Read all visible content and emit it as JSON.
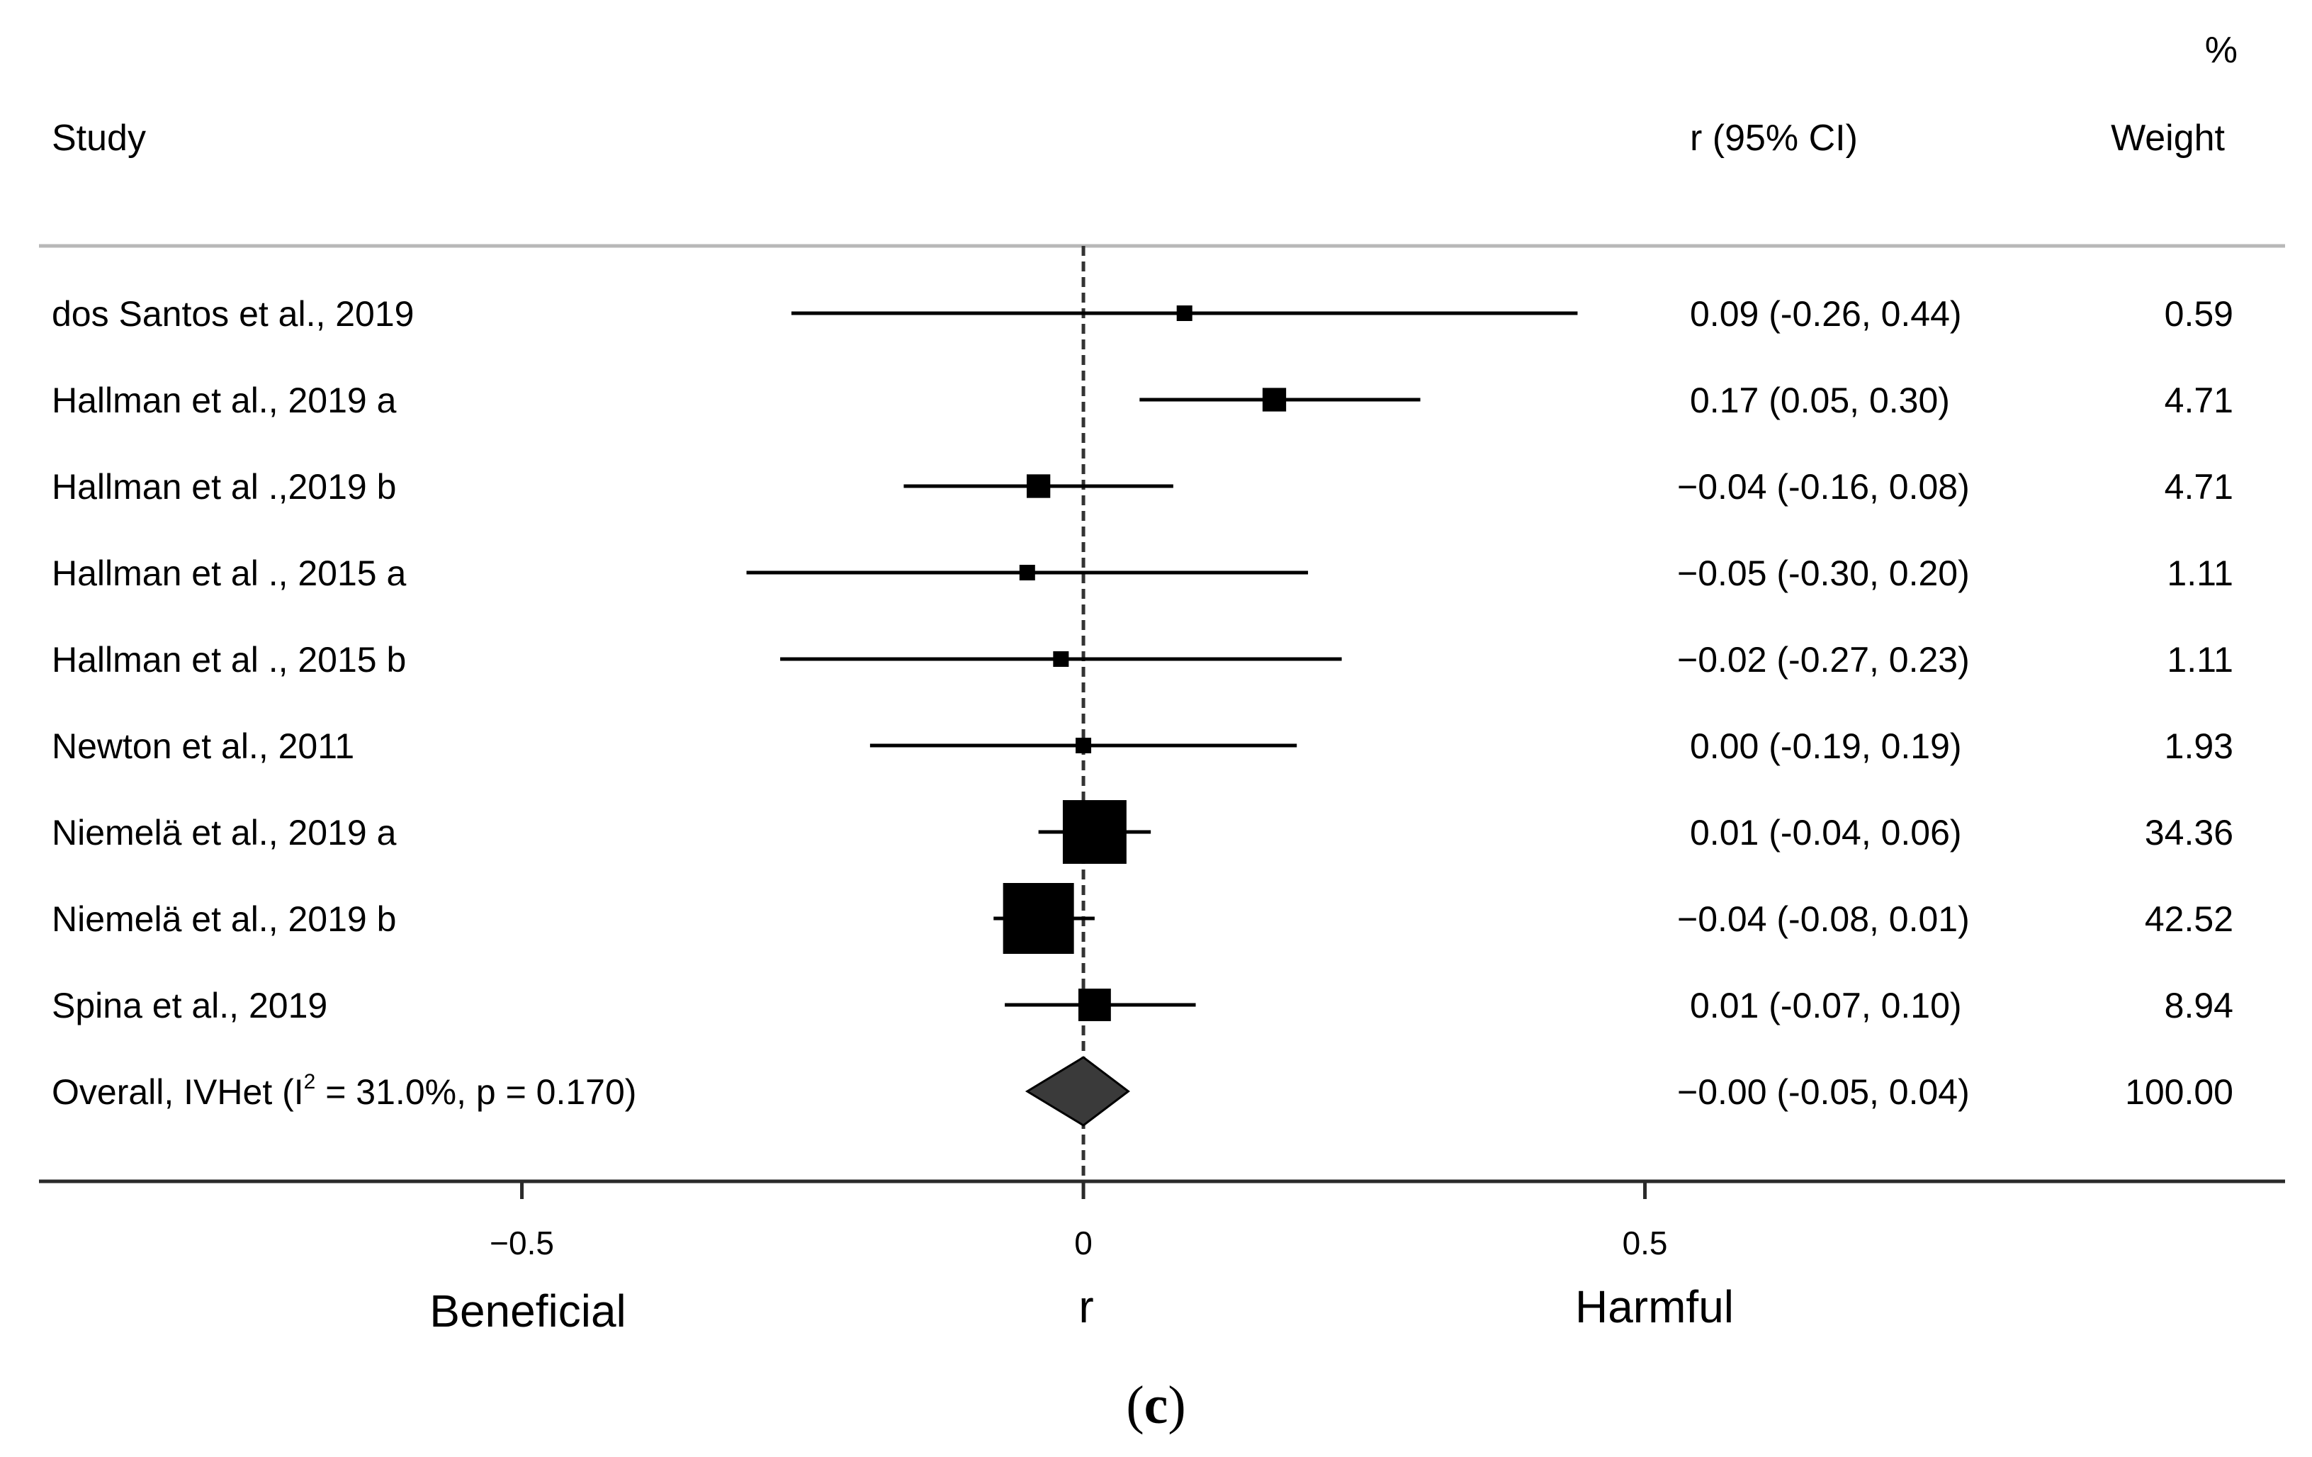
{
  "chart_data": {
    "type": "forest",
    "headers": {
      "study": "Study",
      "effect": "r (95% CI)",
      "weight_top": "%",
      "weight": "Weight"
    },
    "studies": [
      {
        "name": "dos Santos et al., 2019",
        "r": 0.09,
        "lo": -0.26,
        "hi": 0.44,
        "ci_text": "0.09 (-0.26, 0.44)",
        "weight": 0.59,
        "weight_text": "0.59"
      },
      {
        "name": "Hallman et al., 2019 a",
        "r": 0.17,
        "lo": 0.05,
        "hi": 0.3,
        "ci_text": "0.17 (0.05, 0.30)",
        "weight": 4.71,
        "weight_text": "4.71"
      },
      {
        "name": "Hallman et al .,2019 b",
        "r": -0.04,
        "lo": -0.16,
        "hi": 0.08,
        "ci_text": "−0.04 (-0.16, 0.08)",
        "weight": 4.71,
        "weight_text": "4.71"
      },
      {
        "name": "Hallman et al ., 2015 a",
        "r": -0.05,
        "lo": -0.3,
        "hi": 0.2,
        "ci_text": "−0.05 (-0.30, 0.20)",
        "weight": 1.11,
        "weight_text": "1.11"
      },
      {
        "name": "Hallman et al ., 2015 b",
        "r": -0.02,
        "lo": -0.27,
        "hi": 0.23,
        "ci_text": "−0.02 (-0.27, 0.23)",
        "weight": 1.11,
        "weight_text": "1.11"
      },
      {
        "name": "Newton et al., 2011",
        "r": 0.0,
        "lo": -0.19,
        "hi": 0.19,
        "ci_text": "0.00 (-0.19, 0.19)",
        "weight": 1.93,
        "weight_text": "1.93"
      },
      {
        "name": "Niemelä et al., 2019 a",
        "r": 0.01,
        "lo": -0.04,
        "hi": 0.06,
        "ci_text": "0.01 (-0.04, 0.06)",
        "weight": 34.36,
        "weight_text": "34.36"
      },
      {
        "name": "Niemelä et al., 2019 b",
        "r": -0.04,
        "lo": -0.08,
        "hi": 0.01,
        "ci_text": "−0.04 (-0.08, 0.01)",
        "weight": 42.52,
        "weight_text": "42.52"
      },
      {
        "name": "Spina et al., 2019",
        "r": 0.01,
        "lo": -0.07,
        "hi": 0.1,
        "ci_text": "0.01 (-0.07, 0.10)",
        "weight": 8.94,
        "weight_text": "8.94"
      }
    ],
    "overall": {
      "name_prefix": "Overall, IVHet (I",
      "superscript": "2",
      "name_suffix": " = 31.0%, p = 0.170)",
      "r": -0.0,
      "lo": -0.05,
      "hi": 0.04,
      "ci_text": "−0.00 (-0.05, 0.04)",
      "weight_text": "100.00"
    },
    "x_axis": {
      "range": [
        -0.93,
        1.07
      ],
      "ticks": [
        -0.5,
        0,
        0.5
      ],
      "tick_labels": [
        "−0.5",
        "0",
        "0.5"
      ],
      "xlabel": "r",
      "left_label": "Beneficial",
      "right_label": "Harmful"
    },
    "reference_line": 0
  },
  "caption": {
    "open": "(",
    "letter": "c",
    "close": ")"
  }
}
